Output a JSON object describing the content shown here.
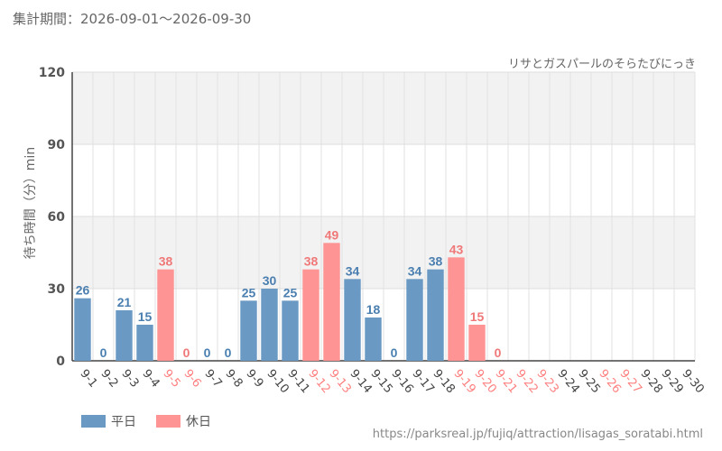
{
  "header": {
    "period": "集計期間：2026-09-01～2026-09-30",
    "subtitle": "リサとガスパールのそらたびにっき"
  },
  "legend": [
    {
      "label": "平日",
      "color": "#6a9ac4"
    },
    {
      "label": "休日",
      "color": "#ff9494"
    }
  ],
  "footer": {
    "source_url": "https://parksreal.jp/fujiq/attraction/lisagas_soratabi.html"
  },
  "chart_data": {
    "type": "bar",
    "ylabel": "待ち時間（分）min",
    "ylim": [
      0,
      120
    ],
    "yticks": [
      0,
      30,
      60,
      90,
      120
    ],
    "grid": true,
    "legend_position": "bottom-left",
    "categories": [
      "9-1",
      "9-2",
      "9-3",
      "9-4",
      "9-5",
      "9-6",
      "9-7",
      "9-8",
      "9-9",
      "9-10",
      "9-11",
      "9-12",
      "9-13",
      "9-14",
      "9-15",
      "9-16",
      "9-17",
      "9-18",
      "9-19",
      "9-20",
      "9-21",
      "9-22",
      "9-23",
      "9-24",
      "9-25",
      "9-26",
      "9-27",
      "9-28",
      "9-29",
      "9-30"
    ],
    "values": [
      26,
      0,
      21,
      15,
      38,
      0,
      0,
      0,
      25,
      30,
      25,
      38,
      49,
      34,
      18,
      0,
      34,
      38,
      43,
      15,
      0,
      null,
      null,
      null,
      null,
      null,
      null,
      null,
      null,
      null
    ],
    "day_type": [
      "weekday",
      "weekday",
      "weekday",
      "weekday",
      "holiday",
      "holiday",
      "weekday",
      "weekday",
      "weekday",
      "weekday",
      "weekday",
      "holiday",
      "holiday",
      "weekday",
      "weekday",
      "weekday",
      "weekday",
      "weekday",
      "holiday",
      "holiday",
      "holiday",
      "holiday",
      "holiday",
      "weekday",
      "weekday",
      "holiday",
      "holiday",
      "weekday",
      "weekday",
      "weekday"
    ],
    "colors": {
      "weekday_bar": "#6a9ac4",
      "holiday_bar": "#ff9494",
      "weekday_label": "#4a7fb0",
      "holiday_label": "#f07878",
      "weekday_tick": "#444444",
      "holiday_tick": "#ff8080"
    }
  }
}
